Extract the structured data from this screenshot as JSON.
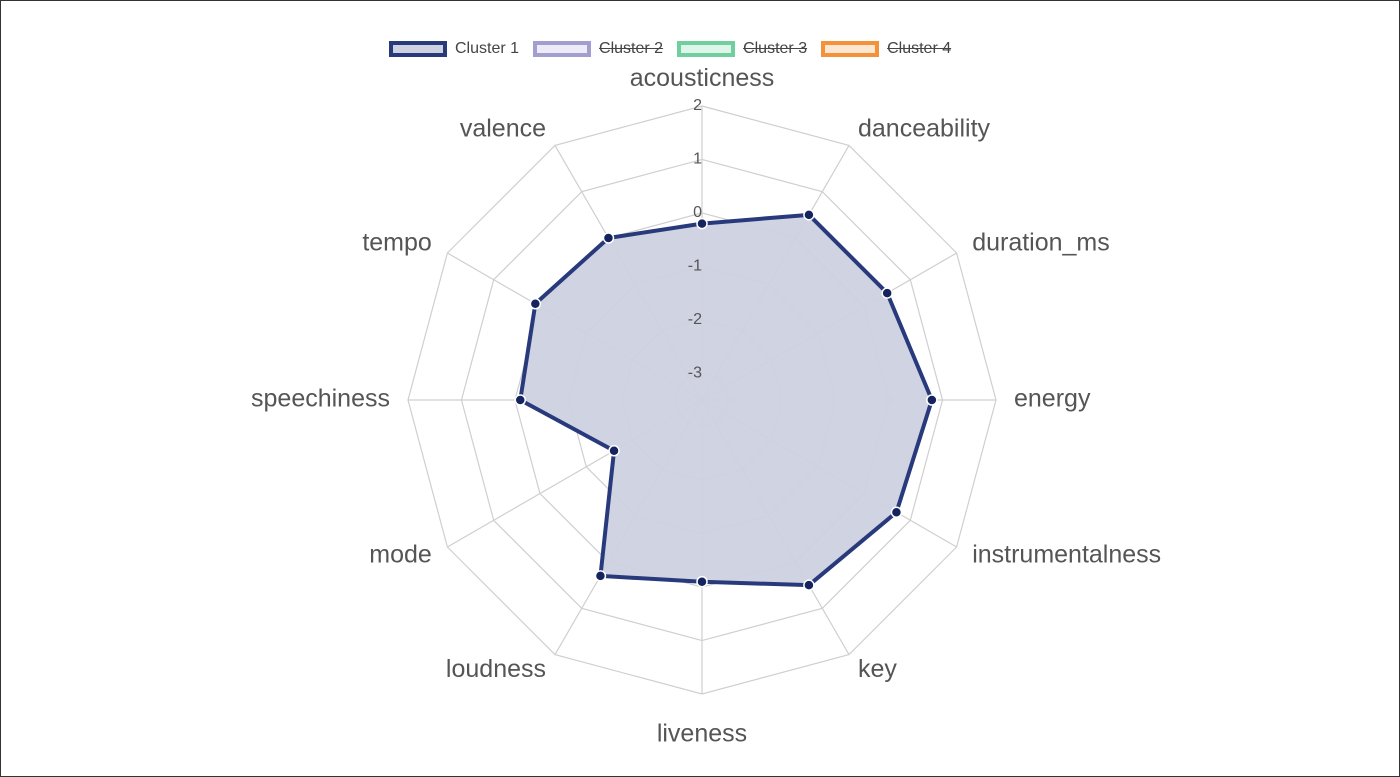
{
  "chart_data": {
    "type": "radar",
    "axes": [
      "acousticness",
      "danceability",
      "duration_ms",
      "energy",
      "instrumentalness",
      "key",
      "liveness",
      "loudness",
      "mode",
      "speechiness",
      "tempo",
      "valence"
    ],
    "radial_ticks": [
      "2",
      "1",
      "0",
      "-1",
      "-2",
      "-3"
    ],
    "radial_range": [
      -3.5,
      2
    ],
    "grid": true,
    "legend_position": "top-center",
    "series": [
      {
        "name": "Cluster 1",
        "visible": true,
        "line_color": "#283a7c",
        "fill_color": "#cdd1e0",
        "values": [
          -0.2,
          0.5,
          0.5,
          0.8,
          0.7,
          0.5,
          -0.1,
          0.3,
          -1.6,
          -0.1,
          0.1,
          0.0
        ]
      },
      {
        "name": "Cluster 2",
        "visible": false,
        "line_color": "#a29ed0",
        "fill_color": "#ecebf7",
        "values": []
      },
      {
        "name": "Cluster 3",
        "visible": false,
        "line_color": "#71cf9f",
        "fill_color": "#def6ea",
        "values": []
      },
      {
        "name": "Cluster 4",
        "visible": false,
        "line_color": "#f3923a",
        "fill_color": "#fde6d2",
        "values": []
      }
    ]
  }
}
